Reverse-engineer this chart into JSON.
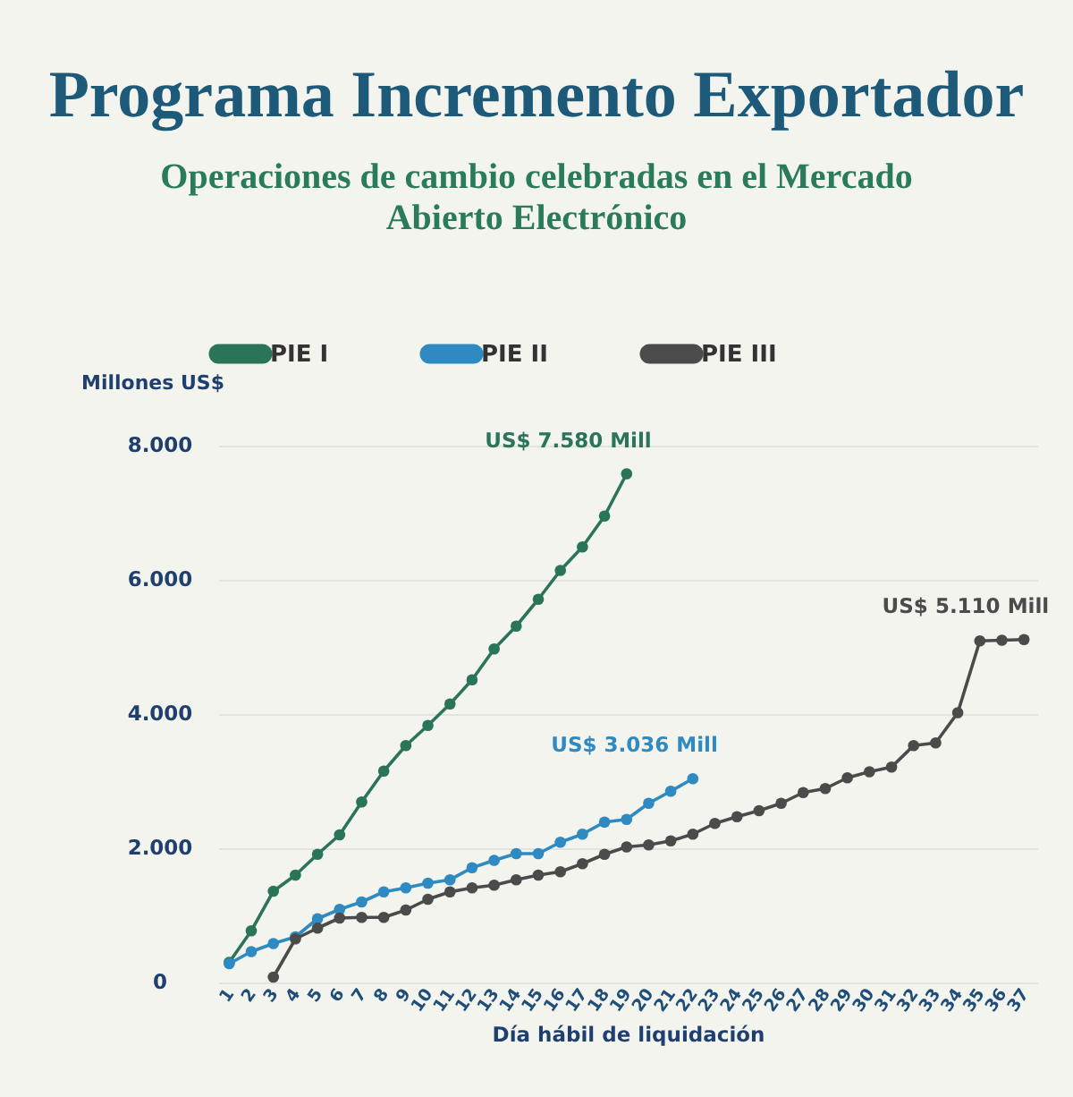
{
  "chart_data": {
    "type": "line",
    "title": "Programa Incremento Exportador",
    "subtitle": "Operaciones de cambio celebradas en el Mercado Abierto Electrónico",
    "xlabel": "Día hábil de liquidación",
    "ylabel": "Millones US$",
    "series": [
      {
        "name": "PIE I",
        "color": "#2a7557",
        "x": [
          1,
          2,
          3,
          4,
          5,
          6,
          7,
          8,
          9,
          10,
          11,
          12,
          13,
          14,
          15,
          16,
          17,
          18,
          19
        ],
        "values": [
          300,
          770,
          1360,
          1600,
          1910,
          2200,
          2690,
          3150,
          3530,
          3830,
          4150,
          4510,
          4970,
          5310,
          5710,
          6140,
          6490,
          6950,
          7580
        ]
      },
      {
        "name": "PIE II",
        "color": "#2e8ac0",
        "x": [
          1,
          2,
          3,
          4,
          5,
          6,
          7,
          8,
          9,
          10,
          11,
          12,
          13,
          14,
          15,
          16,
          17,
          18,
          19,
          20,
          21,
          22
        ],
        "values": [
          280,
          460,
          580,
          680,
          950,
          1090,
          1200,
          1350,
          1410,
          1480,
          1530,
          1710,
          1820,
          1920,
          1920,
          2090,
          2210,
          2390,
          2430,
          2670,
          2850,
          3036
        ]
      },
      {
        "name": "PIE III",
        "color": "#4b4b4b",
        "x": [
          3,
          4,
          5,
          6,
          7,
          8,
          9,
          10,
          11,
          12,
          13,
          14,
          15,
          16,
          17,
          18,
          19,
          20,
          21,
          22,
          23,
          24,
          25,
          26,
          27,
          28,
          29,
          30,
          31,
          32,
          33,
          34,
          35,
          36,
          37
        ],
        "values": [
          80,
          650,
          810,
          960,
          970,
          970,
          1080,
          1240,
          1350,
          1410,
          1450,
          1530,
          1600,
          1650,
          1770,
          1910,
          2020,
          2050,
          2110,
          2210,
          2370,
          2470,
          2560,
          2670,
          2830,
          2890,
          3050,
          3140,
          3210,
          3530,
          3570,
          4020,
          5090,
          5100,
          5110
        ]
      }
    ],
    "xlim": [
      0.5,
      37.6
    ],
    "xticks": [
      1,
      2,
      3,
      4,
      5,
      6,
      7,
      8,
      9,
      10,
      11,
      12,
      13,
      14,
      15,
      16,
      17,
      18,
      19,
      20,
      21,
      22,
      23,
      24,
      25,
      26,
      27,
      28,
      29,
      30,
      31,
      32,
      33,
      34,
      35,
      36,
      37
    ],
    "ylim": [
      0,
      8000
    ],
    "yticks": [
      0,
      {
        "value": 2000,
        "label": "2.000"
      },
      {
        "value": 4000,
        "label": "4.000"
      },
      {
        "value": 6000,
        "label": "6.000"
      },
      {
        "value": 8000,
        "label": "8.000"
      }
    ],
    "annotations": [
      {
        "text": "US$ 7.580 Mill",
        "x": 19,
        "y": 7580
      },
      {
        "text": "US$ 3.036 Mill",
        "x": 22,
        "y": 3036
      },
      {
        "text": "US$ 5.110 Mill",
        "x": 37,
        "y": 5110
      }
    ],
    "grid": "y",
    "legend": "top",
    "marker": "circle"
  }
}
